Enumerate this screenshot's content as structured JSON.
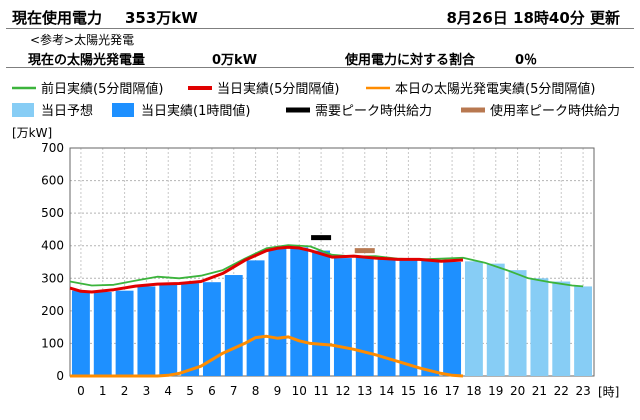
{
  "header": {
    "title": "現在使用電力",
    "current_value": "353万kW",
    "updated": "8月26日 18時40分 更新",
    "note": "<参考>太陽光発電",
    "solar_label": "現在の太陽光発電量",
    "solar_value": "0万kW",
    "ratio_label": "使用電力に対する割合",
    "ratio_value": "0％"
  },
  "chart_data": {
    "type": "bar",
    "y_unit_label": "[万kW]",
    "x_unit_label": "[時]",
    "ylim": [
      0,
      700
    ],
    "yticks": [
      0,
      100,
      200,
      300,
      400,
      500,
      600,
      700
    ],
    "categories": [
      "0",
      "1",
      "2",
      "3",
      "4",
      "5",
      "6",
      "7",
      "8",
      "9",
      "10",
      "11",
      "12",
      "13",
      "14",
      "15",
      "16",
      "17",
      "18",
      "19",
      "20",
      "21",
      "22",
      "23"
    ],
    "grid": true,
    "legend": [
      {
        "label": "前日実績(5分間隔値)",
        "color": "#3cb43c",
        "kind": "line"
      },
      {
        "label": "当日実績(5分間隔値)",
        "color": "#e00000",
        "kind": "line"
      },
      {
        "label": "本日の太陽光発電実績(5分間隔値)",
        "color": "#ff8c00",
        "kind": "line"
      },
      {
        "label": "当日予想",
        "color": "#87cdf5",
        "kind": "box"
      },
      {
        "label": "当日実績(1時間値)",
        "color": "#1e90ff",
        "kind": "box"
      },
      {
        "label": "需要ピーク時供給力",
        "color": "#000000",
        "kind": "dash"
      },
      {
        "label": "使用率ピーク時供給力",
        "color": "#b87850",
        "kind": "dash"
      }
    ],
    "series": [
      {
        "name": "当日実績(1時間値)",
        "kind": "bar",
        "color": "#1e90ff",
        "values": [
          262,
          258,
          262,
          275,
          284,
          285,
          288,
          310,
          355,
          390,
          395,
          385,
          362,
          365,
          362,
          358,
          355,
          350,
          null,
          null,
          null,
          null,
          null,
          null
        ]
      },
      {
        "name": "当日予想",
        "kind": "bar",
        "color": "#87cdf5",
        "values": [
          null,
          null,
          null,
          null,
          null,
          null,
          null,
          null,
          null,
          null,
          null,
          null,
          null,
          null,
          null,
          null,
          null,
          null,
          352,
          345,
          325,
          300,
          290,
          275
        ]
      },
      {
        "name": "前日実績(5分間隔値)",
        "kind": "line",
        "color": "#3cb43c",
        "x": [
          0,
          1,
          2,
          3,
          4,
          5,
          6,
          7,
          8,
          9,
          10,
          11,
          12,
          13,
          14,
          15,
          16,
          17,
          18,
          19,
          20,
          21,
          22,
          23,
          23.5
        ],
        "values": [
          290,
          278,
          280,
          293,
          305,
          300,
          308,
          325,
          360,
          392,
          402,
          398,
          372,
          367,
          368,
          360,
          358,
          360,
          363,
          348,
          325,
          300,
          288,
          278,
          275
        ]
      },
      {
        "name": "当日実績(5分間隔値)",
        "kind": "line",
        "color": "#e00000",
        "x": [
          0,
          0.5,
          1,
          2,
          3,
          4,
          5,
          6,
          7,
          8,
          9,
          9.5,
          10,
          10.5,
          11,
          12,
          13,
          14,
          15,
          16,
          17,
          18
        ],
        "values": [
          270,
          260,
          258,
          265,
          276,
          282,
          284,
          290,
          315,
          355,
          385,
          392,
          395,
          393,
          385,
          365,
          368,
          362,
          358,
          358,
          352,
          356
        ]
      },
      {
        "name": "本日の太陽光発電実績(5分間隔値)",
        "kind": "line",
        "color": "#ff8c00",
        "x": [
          0,
          4,
          4.5,
          5,
          6,
          7,
          8,
          8.5,
          9,
          9.5,
          10,
          10.5,
          11,
          12,
          13,
          14,
          15,
          16,
          17,
          17.5,
          18
        ],
        "values": [
          0,
          0,
          2,
          8,
          30,
          70,
          100,
          118,
          122,
          116,
          120,
          108,
          100,
          95,
          82,
          65,
          45,
          25,
          8,
          2,
          0
        ]
      },
      {
        "name": "需要ピーク時供給力",
        "kind": "marker",
        "color": "#000000",
        "x": 11,
        "value": 425
      },
      {
        "name": "使用率ピーク時供給力",
        "kind": "marker",
        "color": "#b87850",
        "x": 13,
        "value": 385
      }
    ]
  }
}
